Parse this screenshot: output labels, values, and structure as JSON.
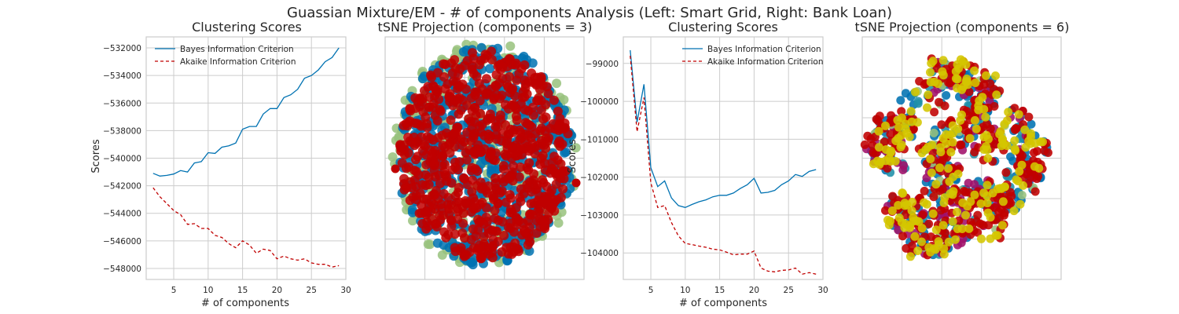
{
  "figure": {
    "suptitle": "Guassian Mixture/EM - # of components Analysis (Left: Smart Grid, Right: Bank Loan)"
  },
  "colors": {
    "bic": "#0072b2",
    "aic": "#c00000",
    "grid": "#cccccc",
    "spine": "#cccccc",
    "cluster_blue": "#0072b2",
    "cluster_green": "#98c27c",
    "cluster_red": "#c00000",
    "cluster_purple": "#a0106a",
    "cluster_teal": "#1f8fa8",
    "cluster_yellow": "#d4c600"
  },
  "chart_data": [
    {
      "type": "line",
      "title": "Clustering Scores",
      "xlabel": "# of components",
      "ylabel": "Scores",
      "xlim": [
        1,
        30
      ],
      "ylim": [
        -548800,
        -531200
      ],
      "xticks": [
        5,
        10,
        15,
        20,
        25,
        30
      ],
      "yticks": [
        -548000,
        -546000,
        -544000,
        -542000,
        -540000,
        -538000,
        -536000,
        -534000,
        -532000
      ],
      "grid": true,
      "legend": "top-left",
      "series": [
        {
          "name": "Bayes Information Criterion",
          "style": "solid",
          "x": [
            2,
            3,
            4,
            5,
            6,
            7,
            8,
            9,
            10,
            11,
            12,
            13,
            14,
            15,
            16,
            17,
            18,
            19,
            20,
            21,
            22,
            23,
            24,
            25,
            26,
            27,
            28,
            29
          ],
          "y": [
            -541100,
            -541300,
            -541250,
            -541150,
            -540900,
            -541000,
            -540350,
            -540250,
            -539600,
            -539650,
            -539200,
            -539100,
            -538900,
            -537900,
            -537700,
            -537700,
            -536800,
            -536400,
            -536400,
            -535600,
            -535400,
            -535000,
            -534200,
            -534000,
            -533600,
            -533000,
            -532700,
            -532000
          ]
        },
        {
          "name": "Akaike Information Criterion",
          "style": "dashed",
          "x": [
            2,
            3,
            4,
            5,
            6,
            7,
            8,
            9,
            10,
            11,
            12,
            13,
            14,
            15,
            16,
            17,
            18,
            19,
            20,
            21,
            22,
            23,
            24,
            25,
            26,
            27,
            28,
            29
          ],
          "y": [
            -542150,
            -542800,
            -543300,
            -543800,
            -544100,
            -544800,
            -544750,
            -545100,
            -545100,
            -545600,
            -545750,
            -546200,
            -546500,
            -546000,
            -546300,
            -546900,
            -546600,
            -546700,
            -547300,
            -547100,
            -547300,
            -547400,
            -547300,
            -547600,
            -547700,
            -547700,
            -547900,
            -547800
          ]
        }
      ]
    },
    {
      "type": "scatter",
      "title": "tSNE Projection (components = 3)",
      "axes_ticks": false,
      "grid": true,
      "clusters": [
        "green",
        "blue",
        "red"
      ]
    },
    {
      "type": "line",
      "title": "Clustering Scores",
      "xlabel": "# of components",
      "ylabel": "Scores",
      "xlim": [
        1,
        30
      ],
      "ylim": [
        -104700,
        -98300
      ],
      "xticks": [
        5,
        10,
        15,
        20,
        25,
        30
      ],
      "yticks": [
        -104000,
        -103000,
        -102000,
        -101000,
        -100000,
        -99000
      ],
      "grid": true,
      "legend": "top-right",
      "series": [
        {
          "name": "Bayes Information Criterion",
          "style": "solid",
          "x": [
            2,
            3,
            4,
            5,
            6,
            7,
            8,
            9,
            10,
            11,
            12,
            13,
            14,
            15,
            16,
            17,
            18,
            19,
            20,
            21,
            22,
            23,
            24,
            25,
            26,
            27,
            28,
            29
          ],
          "y": [
            -98650,
            -100550,
            -99550,
            -101750,
            -102250,
            -102100,
            -102550,
            -102750,
            -102800,
            -102720,
            -102650,
            -102600,
            -102520,
            -102480,
            -102480,
            -102420,
            -102300,
            -102200,
            -102030,
            -102420,
            -102400,
            -102350,
            -102200,
            -102100,
            -101930,
            -101980,
            -101850,
            -101800
          ]
        },
        {
          "name": "Akaike Information Criterion",
          "style": "dashed",
          "x": [
            2,
            3,
            4,
            5,
            6,
            7,
            8,
            9,
            10,
            11,
            12,
            13,
            14,
            15,
            16,
            17,
            18,
            19,
            20,
            21,
            22,
            23,
            24,
            25,
            26,
            27,
            28,
            29
          ],
          "y": [
            -98800,
            -100800,
            -99900,
            -102150,
            -102800,
            -102750,
            -103200,
            -103550,
            -103750,
            -103780,
            -103820,
            -103850,
            -103900,
            -103920,
            -103980,
            -104050,
            -104030,
            -104030,
            -103950,
            -104400,
            -104480,
            -104500,
            -104460,
            -104450,
            -104400,
            -104560,
            -104520,
            -104560
          ]
        }
      ]
    },
    {
      "type": "scatter",
      "title": "tSNE Projection (components = 6)",
      "axes_ticks": false,
      "grid": true,
      "clusters": [
        "blue",
        "teal",
        "purple",
        "red",
        "yellow",
        "green"
      ]
    }
  ]
}
